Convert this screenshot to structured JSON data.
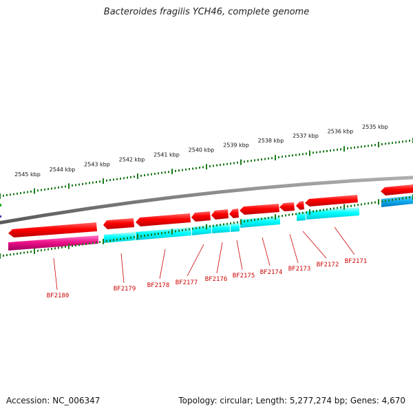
{
  "title": "Bacteroides fragilis YCH46, complete genome",
  "footer": {
    "accession": "Accession: NC_006347",
    "stats": "Topology: circular; Length: 5,277,274 bp; Genes: 4,670"
  },
  "colors": {
    "forward_cds": "#ff0000",
    "reverse_cds": "#00ffff",
    "highlight_cds": "#ee1188",
    "other_cds": "#11aaee",
    "backbone": "#7a7a7a",
    "tick": "#1a7a1a",
    "label": "#cc0000"
  },
  "scale_labels": [
    "2545 kbp",
    "2544 kbp",
    "2543 kbp",
    "2542 kbp",
    "2541 kbp",
    "2540 kbp",
    "2539 kbp",
    "2538 kbp",
    "2537 kbp",
    "2536 kbp",
    "2535 kbp"
  ],
  "genes": [
    "BF2180",
    "BF2179",
    "BF2178",
    "BF2177",
    "BF2176",
    "BF2175",
    "BF2174",
    "BF2173",
    "BF2172",
    "BF2171"
  ]
}
